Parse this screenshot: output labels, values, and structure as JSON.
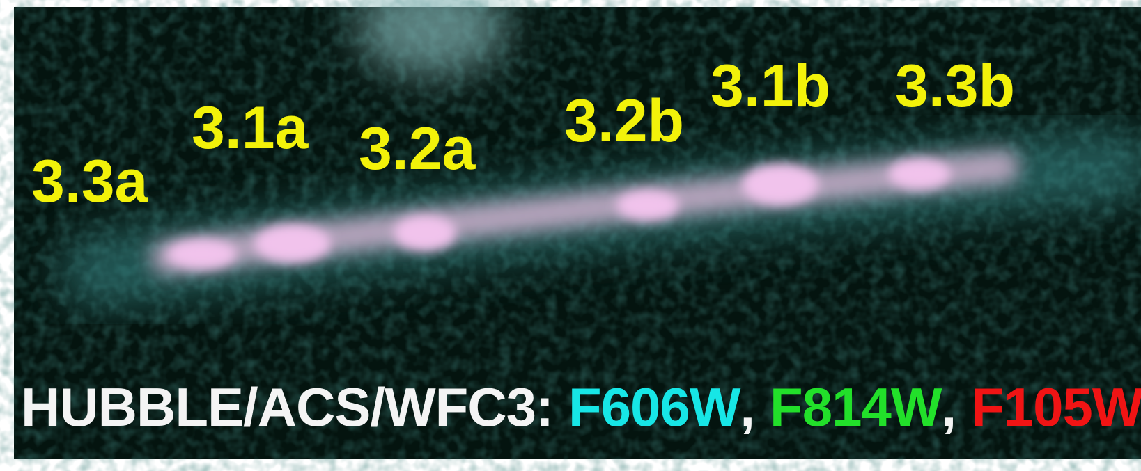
{
  "image": {
    "labels": [
      "3.3a",
      "3.1a",
      "3.2a",
      "3.2b",
      "3.1b",
      "3.3b"
    ],
    "caption": [
      "HUBBLE/ACS/WFC3:",
      "F606W",
      ",",
      "F814W",
      ",",
      "F105W"
    ]
  }
}
